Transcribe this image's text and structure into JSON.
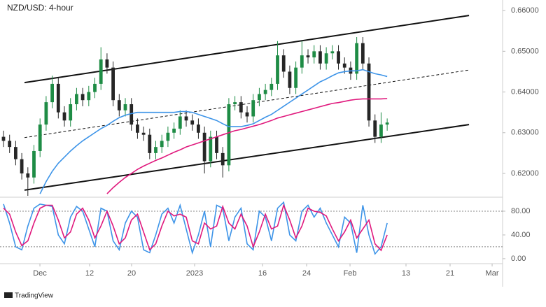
{
  "chart_data": [
    {
      "type": "candlestick",
      "title": "NZD/USD: 4-hour",
      "x": [
        0,
        1,
        2,
        3,
        4,
        5,
        6,
        7,
        8,
        9,
        10,
        11,
        12,
        13,
        14,
        15,
        16,
        17,
        18,
        19,
        20,
        21,
        22,
        23,
        24,
        25,
        26,
        27,
        28,
        29,
        30,
        31,
        32,
        33,
        34,
        35,
        36,
        37,
        38,
        39,
        40,
        41,
        42,
        43,
        44,
        45,
        46,
        47,
        48,
        49,
        50,
        51,
        52,
        53,
        54,
        55,
        56,
        57,
        58,
        59,
        60,
        61,
        62,
        63
      ],
      "open": [
        0.629,
        0.628,
        0.6265,
        0.6235,
        0.62,
        0.619,
        0.6255,
        0.632,
        0.6375,
        0.642,
        0.635,
        0.633,
        0.637,
        0.6395,
        0.638,
        0.64,
        0.642,
        0.648,
        0.646,
        0.638,
        0.6355,
        0.637,
        0.632,
        0.63,
        0.6295,
        0.625,
        0.6265,
        0.628,
        0.63,
        0.631,
        0.634,
        0.633,
        0.632,
        0.63,
        0.623,
        0.629,
        0.625,
        0.622,
        0.637,
        0.6375,
        0.635,
        0.634,
        0.638,
        0.6395,
        0.6405,
        0.642,
        0.649,
        0.645,
        0.641,
        0.646,
        0.649,
        0.6485,
        0.65,
        0.647,
        0.6495,
        0.65,
        0.647,
        0.646,
        0.6445,
        0.652,
        0.647,
        0.633,
        0.629,
        0.632
      ],
      "high": [
        0.6305,
        0.6295,
        0.628,
        0.625,
        0.6215,
        0.627,
        0.6335,
        0.639,
        0.644,
        0.6435,
        0.6365,
        0.6385,
        0.641,
        0.641,
        0.6415,
        0.6435,
        0.651,
        0.6495,
        0.6475,
        0.6395,
        0.6385,
        0.6385,
        0.6335,
        0.6315,
        0.631,
        0.628,
        0.6295,
        0.6315,
        0.6325,
        0.6355,
        0.6355,
        0.6345,
        0.6335,
        0.6315,
        0.6305,
        0.6305,
        0.6265,
        0.6385,
        0.639,
        0.639,
        0.6365,
        0.6395,
        0.641,
        0.642,
        0.6435,
        0.6525,
        0.6505,
        0.6465,
        0.6475,
        0.6525,
        0.6505,
        0.6515,
        0.6515,
        0.651,
        0.6515,
        0.6515,
        0.6485,
        0.6475,
        0.6535,
        0.6535,
        0.6485,
        0.6345,
        0.635,
        0.6335
      ],
      "low": [
        0.6265,
        0.625,
        0.622,
        0.6185,
        0.6145,
        0.6175,
        0.624,
        0.6305,
        0.636,
        0.6335,
        0.6315,
        0.6315,
        0.6355,
        0.6365,
        0.6365,
        0.6385,
        0.6405,
        0.6445,
        0.6365,
        0.634,
        0.634,
        0.6305,
        0.6285,
        0.628,
        0.6235,
        0.6235,
        0.625,
        0.6265,
        0.6285,
        0.6295,
        0.6315,
        0.6305,
        0.6285,
        0.62,
        0.6215,
        0.6235,
        0.619,
        0.6205,
        0.6355,
        0.6335,
        0.6325,
        0.6325,
        0.6365,
        0.638,
        0.639,
        0.6405,
        0.6435,
        0.6395,
        0.6395,
        0.6445,
        0.647,
        0.647,
        0.6455,
        0.6455,
        0.648,
        0.6455,
        0.6445,
        0.643,
        0.643,
        0.6455,
        0.6315,
        0.6275,
        0.6275,
        0.6305
      ],
      "close": [
        0.628,
        0.6265,
        0.6235,
        0.62,
        0.619,
        0.6255,
        0.632,
        0.6375,
        0.642,
        0.635,
        0.633,
        0.637,
        0.6395,
        0.638,
        0.64,
        0.642,
        0.648,
        0.646,
        0.638,
        0.6355,
        0.637,
        0.632,
        0.63,
        0.6295,
        0.625,
        0.6265,
        0.628,
        0.63,
        0.631,
        0.634,
        0.633,
        0.632,
        0.63,
        0.623,
        0.629,
        0.625,
        0.622,
        0.637,
        0.6375,
        0.635,
        0.634,
        0.638,
        0.6395,
        0.6405,
        0.642,
        0.649,
        0.645,
        0.641,
        0.646,
        0.649,
        0.6485,
        0.65,
        0.647,
        0.6495,
        0.65,
        0.647,
        0.646,
        0.6445,
        0.652,
        0.647,
        0.633,
        0.629,
        0.632,
        0.6325
      ],
      "up_color": "#1e8c45",
      "down_color": "#262626",
      "series": [
        {
          "color": "#3d94e8",
          "values": [
            null,
            null,
            null,
            null,
            null,
            null,
            0.615,
            0.618,
            0.6205,
            0.6225,
            0.624,
            0.6255,
            0.6268,
            0.628,
            0.629,
            0.63,
            0.631,
            0.6318,
            0.6328,
            0.6337,
            0.6343,
            0.6347,
            0.635,
            0.635,
            0.635,
            0.635,
            0.635,
            0.635,
            0.635,
            0.6352,
            0.6352,
            0.635,
            0.6345,
            0.634,
            0.6335,
            0.633,
            0.6322,
            0.6315,
            0.6315,
            0.6315,
            0.6318,
            0.6322,
            0.633,
            0.6338,
            0.6345,
            0.6355,
            0.6365,
            0.6375,
            0.6385,
            0.6395,
            0.6405,
            0.6415,
            0.6425,
            0.6432,
            0.644,
            0.6447,
            0.645,
            0.6452,
            0.6452,
            0.6455,
            0.645,
            0.6445,
            0.6442,
            0.6438
          ]
        },
        {
          "color": "#e0197d",
          "values": [
            null,
            null,
            null,
            null,
            null,
            null,
            null,
            null,
            null,
            null,
            null,
            null,
            null,
            null,
            null,
            null,
            null,
            0.615,
            0.6165,
            0.6178,
            0.619,
            0.62,
            0.621,
            0.6218,
            0.6225,
            0.6232,
            0.6238,
            0.6245,
            0.6252,
            0.6258,
            0.6265,
            0.627,
            0.6275,
            0.628,
            0.6285,
            0.629,
            0.6295,
            0.63,
            0.6305,
            0.6308,
            0.6312,
            0.6316,
            0.632,
            0.6325,
            0.633,
            0.6336,
            0.634,
            0.6344,
            0.6348,
            0.6352,
            0.6356,
            0.636,
            0.6364,
            0.6368,
            0.6372,
            0.6374,
            0.6377,
            0.638,
            0.6382,
            0.6383,
            0.6383,
            0.6383,
            0.6383,
            0.6384
          ]
        }
      ],
      "channel": [
        {
          "x": [
            3.45,
            76.44
          ],
          "y": [
            0.6423,
            0.6588
          ],
          "style": "solid"
        },
        {
          "x": [
            3.45,
            76.44
          ],
          "y": [
            0.6288,
            0.6454
          ],
          "style": "dashed"
        },
        {
          "x": [
            3.45,
            76.44
          ],
          "y": [
            0.6159,
            0.632
          ],
          "style": "solid"
        }
      ],
      "xlim": [
        -0.575,
        81.95
      ],
      "ylim": [
        0.6145,
        0.6626
      ],
      "yticks": [
        {
          "value": 0.66,
          "label": "0.66000"
        },
        {
          "value": 0.65,
          "label": "0.65000"
        },
        {
          "value": 0.64,
          "label": "0.64000"
        },
        {
          "value": 0.63,
          "label": "0.63000"
        },
        {
          "value": 0.62,
          "label": "0.62000"
        }
      ]
    },
    {
      "type": "line",
      "x": [
        0,
        1,
        2,
        3,
        4,
        5,
        6,
        7,
        8,
        9,
        10,
        11,
        12,
        13,
        14,
        15,
        16,
        17,
        18,
        19,
        20,
        21,
        22,
        23,
        24,
        25,
        26,
        27,
        28,
        29,
        30,
        31,
        32,
        33,
        34,
        35,
        36,
        37,
        38,
        39,
        40,
        41,
        42,
        43,
        44,
        45,
        46,
        47,
        48,
        49,
        50,
        51,
        52,
        53,
        54,
        55,
        56,
        57,
        58,
        59,
        60,
        61,
        62,
        63
      ],
      "series": [
        {
          "color": "#3d94e8",
          "values": [
            92,
            60,
            20,
            15,
            55,
            85,
            92,
            90,
            88,
            40,
            25,
            70,
            88,
            80,
            50,
            20,
            85,
            80,
            30,
            15,
            60,
            80,
            70,
            15,
            10,
            40,
            75,
            85,
            60,
            90,
            50,
            10,
            40,
            80,
            20,
            90,
            85,
            30,
            70,
            85,
            25,
            15,
            80,
            70,
            30,
            85,
            95,
            40,
            30,
            80,
            90,
            70,
            85,
            60,
            40,
            20,
            70,
            60,
            10,
            90,
            40,
            8,
            20,
            60
          ]
        },
        {
          "color": "#e0197d",
          "values": [
            85,
            75,
            45,
            22,
            30,
            60,
            85,
            90,
            90,
            65,
            35,
            45,
            75,
            85,
            65,
            35,
            55,
            80,
            55,
            25,
            35,
            65,
            75,
            45,
            15,
            25,
            55,
            80,
            72,
            75,
            70,
            30,
            25,
            60,
            50,
            55,
            88,
            60,
            50,
            75,
            55,
            20,
            45,
            75,
            50,
            55,
            90,
            65,
            35,
            55,
            85,
            80,
            78,
            72,
            50,
            30,
            45,
            65,
            35,
            50,
            65,
            25,
            14,
            40
          ]
        }
      ],
      "ref_lines": [
        80,
        20
      ],
      "xlim": [
        -0.575,
        81.95
      ],
      "ylim": [
        -6,
        100
      ],
      "yticks": [
        {
          "value": 80,
          "label": "80.00"
        },
        {
          "value": 40,
          "label": "40.00"
        },
        {
          "value": 0,
          "label": "0.00"
        }
      ],
      "xticks": [
        {
          "value": 5.98,
          "label": "Dec"
        },
        {
          "value": 14.14,
          "label": "12"
        },
        {
          "value": 21.03,
          "label": "20"
        },
        {
          "value": 31.38,
          "label": "2023"
        },
        {
          "value": 42.53,
          "label": "16"
        },
        {
          "value": 49.77,
          "label": "24"
        },
        {
          "value": 56.9,
          "label": "Feb"
        },
        {
          "value": 66.09,
          "label": "13"
        },
        {
          "value": 73.33,
          "label": "21"
        },
        {
          "value": 80.23,
          "label": "Mar"
        }
      ]
    }
  ],
  "footer": {
    "brand": "TradingView"
  }
}
